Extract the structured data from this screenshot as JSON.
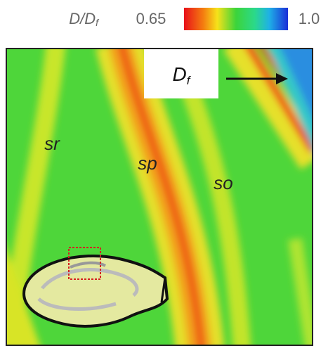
{
  "colorbar": {
    "label": {
      "main": "D/D",
      "subscript": "f"
    },
    "min_label": "0.65",
    "max_label": "1.0"
  },
  "figure": {
    "box_label": {
      "main": "D",
      "subscript": "f"
    },
    "regions": [
      "sr",
      "sp",
      "so"
    ]
  }
}
